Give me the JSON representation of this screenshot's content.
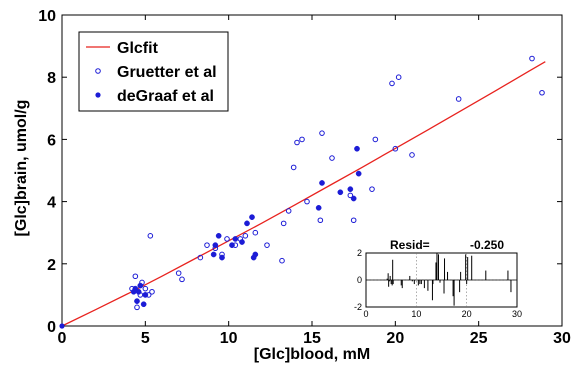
{
  "chart_data": {
    "type": "scatter",
    "xlabel": "[Glc]blood, mM",
    "ylabel": "[Glc]brain, umol/g",
    "xlim": [
      0,
      30
    ],
    "ylim": [
      0,
      10
    ],
    "x_ticks": [
      "0",
      "5",
      "10",
      "15",
      "20",
      "25",
      "30"
    ],
    "y_ticks": [
      "0",
      "2",
      "4",
      "6",
      "8",
      "10"
    ],
    "grid": false,
    "legend_position": "top-left",
    "colors": {
      "fit": "#e8231f",
      "marker": "#1c1cd6",
      "axis": "#000000"
    },
    "series": [
      {
        "name": "Glcfit",
        "type": "line",
        "x": [
          0,
          2,
          4,
          6,
          8,
          10,
          12,
          14,
          16,
          18,
          20,
          22,
          24,
          26,
          28,
          29
        ],
        "y": [
          0,
          0.52,
          1.05,
          1.6,
          2.17,
          2.74,
          3.31,
          3.9,
          4.5,
          5.1,
          5.71,
          6.32,
          6.94,
          7.56,
          8.19,
          8.5
        ]
      },
      {
        "name": "Gruetter et al",
        "type": "open-circle",
        "x": [
          4.2,
          4.4,
          4.5,
          4.7,
          4.8,
          5.0,
          5.2,
          5.3,
          5.4,
          7.0,
          7.2,
          8.3,
          8.7,
          9.2,
          9.6,
          9.9,
          10.4,
          10.7,
          11.0,
          11.6,
          12.3,
          13.2,
          13.3,
          13.6,
          13.9,
          14.1,
          14.4,
          14.7,
          15.5,
          15.6,
          16.2,
          17.3,
          17.5,
          18.6,
          18.8,
          19.8,
          20.0,
          20.2,
          21.0,
          23.8,
          28.2,
          28.8
        ],
        "y": [
          1.2,
          1.6,
          0.6,
          1.0,
          1.4,
          1.2,
          1.0,
          2.9,
          1.1,
          1.7,
          1.5,
          2.2,
          2.6,
          2.5,
          2.3,
          2.8,
          2.6,
          2.8,
          2.9,
          3.0,
          2.6,
          2.1,
          3.3,
          3.7,
          5.1,
          5.9,
          6.0,
          4.0,
          3.4,
          6.2,
          5.4,
          4.2,
          3.4,
          4.4,
          6.0,
          7.8,
          5.7,
          8.0,
          5.5,
          7.3,
          8.6,
          7.5
        ]
      },
      {
        "name": "deGraaf et al",
        "type": "filled-circle",
        "x": [
          4.3,
          4.4,
          4.5,
          4.6,
          4.7,
          4.9,
          5.0,
          9.1,
          9.2,
          9.4,
          9.6,
          10.2,
          10.4,
          10.8,
          11.1,
          11.4,
          11.5,
          11.6,
          15.4,
          15.6,
          16.7,
          17.3,
          17.5,
          17.7,
          17.8
        ],
        "y": [
          1.1,
          1.2,
          0.8,
          1.1,
          1.3,
          0.7,
          1.0,
          2.3,
          2.6,
          2.9,
          2.2,
          2.6,
          2.8,
          2.7,
          3.3,
          3.5,
          2.2,
          2.3,
          3.8,
          4.6,
          4.3,
          4.4,
          4.1,
          5.7,
          4.9
        ]
      }
    ],
    "inset": {
      "title": "Resid=",
      "value": "-0.250",
      "xlim": [
        0,
        30
      ],
      "ylim": [
        -2,
        2
      ],
      "x_ticks": [
        "0",
        "10",
        "20",
        "30"
      ],
      "y_ticks": [
        "-2",
        "0",
        "2"
      ],
      "grid": true,
      "residuals": {
        "x": [
          4.2,
          4.4,
          4.5,
          4.7,
          4.8,
          5.0,
          5.2,
          5.3,
          5.4,
          7.0,
          7.2,
          8.3,
          8.7,
          9.2,
          9.6,
          9.9,
          10.4,
          10.7,
          11.0,
          11.6,
          12.3,
          13.2,
          13.3,
          13.6,
          13.9,
          14.1,
          14.4,
          14.7,
          15.5,
          15.6,
          16.2,
          17.3,
          17.5,
          18.6,
          18.8,
          19.8,
          20.0,
          20.2,
          21.0,
          23.8,
          28.2,
          28.8
        ],
        "y": [
          0.1,
          0.5,
          -0.5,
          -0.1,
          0.3,
          -0.3,
          -0.4,
          1.5,
          -0.3,
          -0.4,
          -0.6,
          0.0,
          0.3,
          -0.1,
          -0.3,
          0.0,
          -0.4,
          -0.3,
          -0.3,
          -0.6,
          -0.8,
          -1.5,
          -0.3,
          0.0,
          1.3,
          2.0,
          1.9,
          -0.2,
          -1.0,
          1.6,
          0.6,
          -1.2,
          -1.9,
          -0.9,
          0.6,
          1.9,
          -0.3,
          1.7,
          1.8,
          0.7,
          0.7,
          -0.9
        ]
      }
    }
  }
}
